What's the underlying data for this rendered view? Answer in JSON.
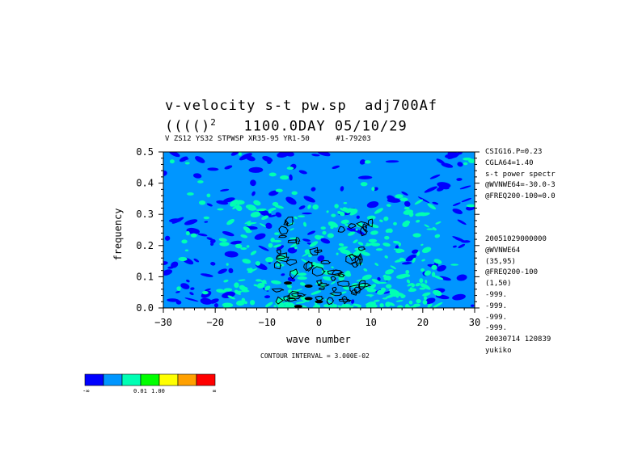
{
  "header": {
    "title": "v-velocity s-t pw.sp  adj700Af",
    "subtitle_lhs": "(((()",
    "subtitle_sup": "2",
    "subtitle_rhs": "   1100.0DAY 05/10/29",
    "info_line": "V ZS12 YS32 STPWSP XR35-95 YR1-50      #1-79203"
  },
  "sidebar_top": [
    "CSIG16.P=0.23",
    "CGLA64=1.40",
    "s-t power spectr",
    "@WVNWE64=-30.0-3",
    "@FREQ200-100=0.0"
  ],
  "sidebar_bottom": [
    "20051029000000",
    "@WVNWE64",
    "(35,95)",
    "@FREQ200-100",
    "(1,50)",
    "-999.",
    "-999.",
    "-999.",
    "-999.",
    "20030714 120839",
    "yukiko"
  ],
  "contour_interval": "CONTOUR INTERVAL = 3.000E-02",
  "colorbar": {
    "colors": [
      "#0000ff",
      "#0096ff",
      "#00ffb4",
      "#00ff00",
      "#ffff00",
      "#ffa000",
      "#ff0000"
    ],
    "labels": [
      "-∞",
      "0.01",
      "1.00",
      "∞"
    ]
  },
  "chart_data": {
    "type": "heatmap",
    "xlabel": "wave number",
    "ylabel": "frequency",
    "xlim": [
      -30,
      30
    ],
    "ylim": [
      0,
      0.5
    ],
    "xticks": [
      -30,
      -20,
      -10,
      0,
      10,
      20,
      30
    ],
    "xtick_labels": [
      "−30",
      "−20",
      "−10",
      "0",
      "10",
      "20",
      "30"
    ],
    "yticks": [
      0,
      0.1,
      0.2,
      0.3,
      0.4,
      0.5
    ],
    "ytick_labels": [
      "0.0",
      "0.1",
      "0.2",
      "0.3",
      "0.4",
      "0.5"
    ],
    "field_colors": {
      "low": "#0000ff",
      "mid": "#0096ff",
      "high": "#00ffb4"
    },
    "contour_color": "#000000"
  }
}
